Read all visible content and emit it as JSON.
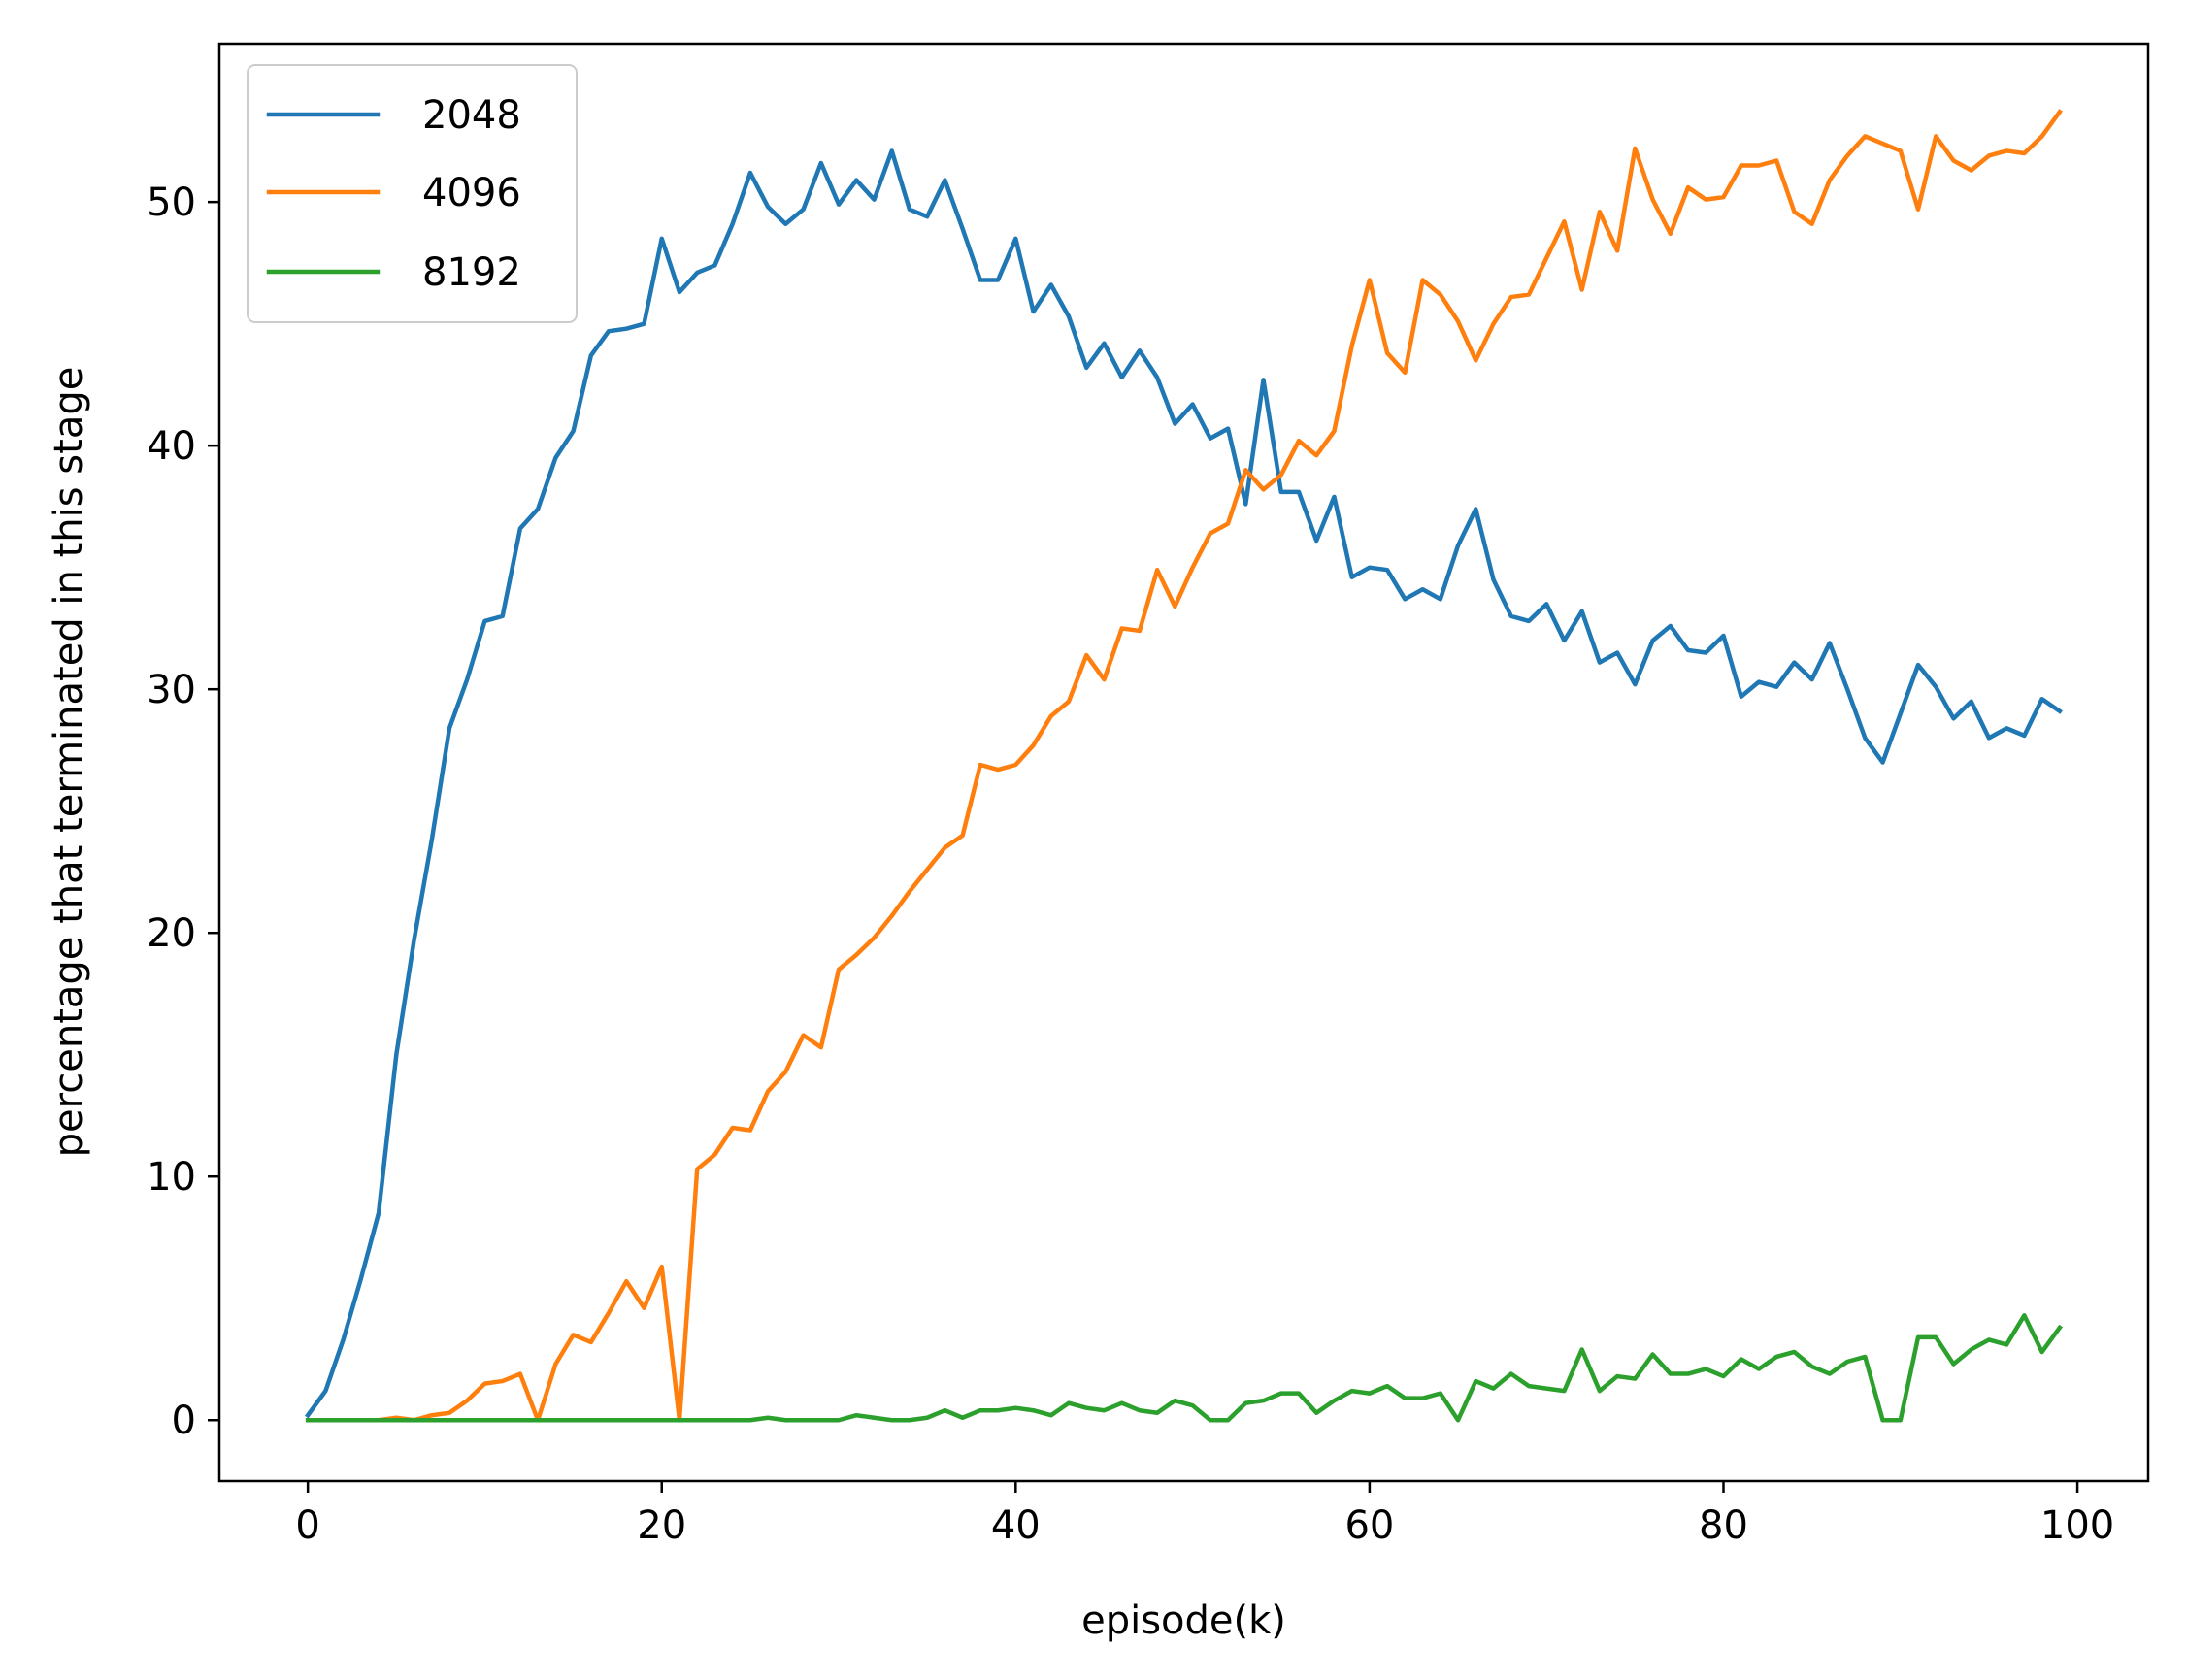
{
  "chart_data": {
    "type": "line",
    "xlabel": "episode(k)",
    "ylabel": "percentage that terminated in this stage",
    "xlim": [
      -5,
      104
    ],
    "ylim": [
      -2.5,
      56.5
    ],
    "xticks": [
      0,
      20,
      40,
      60,
      80,
      100
    ],
    "yticks": [
      0,
      10,
      20,
      30,
      40,
      50
    ],
    "grid": false,
    "legend_position": "top-left",
    "x": [
      0,
      1,
      2,
      3,
      4,
      5,
      6,
      7,
      8,
      9,
      10,
      11,
      12,
      13,
      14,
      15,
      16,
      17,
      18,
      19,
      20,
      21,
      22,
      23,
      24,
      25,
      26,
      27,
      28,
      29,
      30,
      31,
      32,
      33,
      34,
      35,
      36,
      37,
      38,
      39,
      40,
      41,
      42,
      43,
      44,
      45,
      46,
      47,
      48,
      49,
      50,
      51,
      52,
      53,
      54,
      55,
      56,
      57,
      58,
      59,
      60,
      61,
      62,
      63,
      64,
      65,
      66,
      67,
      68,
      69,
      70,
      71,
      72,
      73,
      74,
      75,
      76,
      77,
      78,
      79,
      80,
      81,
      82,
      83,
      84,
      85,
      86,
      87,
      88,
      89,
      90,
      91,
      92,
      93,
      94,
      95,
      96,
      97,
      98,
      99
    ],
    "series": [
      {
        "name": "2048",
        "color": "#1f77b4",
        "values": [
          0.2,
          1.2,
          3.3,
          5.8,
          8.5,
          15.0,
          19.7,
          23.8,
          28.4,
          30.4,
          32.8,
          33.0,
          36.6,
          37.4,
          39.5,
          40.6,
          43.7,
          44.7,
          44.8,
          45.0,
          48.5,
          46.3,
          47.1,
          47.4,
          49.1,
          51.2,
          49.8,
          49.1,
          49.7,
          51.6,
          49.9,
          50.9,
          50.1,
          52.1,
          49.7,
          49.4,
          50.9,
          48.9,
          46.8,
          46.8,
          48.5,
          45.5,
          46.6,
          45.3,
          43.2,
          44.2,
          42.8,
          43.9,
          42.8,
          40.9,
          41.7,
          40.3,
          40.7,
          37.6,
          42.7,
          38.1,
          38.1,
          36.1,
          37.9,
          34.6,
          35.0,
          34.9,
          33.7,
          34.1,
          33.7,
          35.9,
          37.4,
          34.5,
          33.0,
          32.8,
          33.5,
          32.0,
          33.2,
          31.1,
          31.5,
          30.2,
          32.0,
          32.6,
          31.6,
          31.5,
          32.2,
          29.7,
          30.3,
          30.1,
          31.1,
          30.4,
          31.9,
          30.0,
          28.0,
          27.0,
          29.0,
          31.0,
          30.1,
          28.8,
          29.5,
          28.0,
          28.4,
          28.1,
          29.6,
          29.1
        ]
      },
      {
        "name": "4096",
        "color": "#ff7f0e",
        "values": [
          0.0,
          0.0,
          0.0,
          0.0,
          0.0,
          0.1,
          0.0,
          0.2,
          0.3,
          0.8,
          1.5,
          1.6,
          1.9,
          0.0,
          2.3,
          3.5,
          3.2,
          4.4,
          5.7,
          4.6,
          6.3,
          0.0,
          10.3,
          10.9,
          12.0,
          11.9,
          13.5,
          14.3,
          15.8,
          15.3,
          18.5,
          19.1,
          19.8,
          20.7,
          21.7,
          22.6,
          23.5,
          24.0,
          26.9,
          26.7,
          26.9,
          27.7,
          28.9,
          29.5,
          31.4,
          30.4,
          32.5,
          32.4,
          34.9,
          33.4,
          35.0,
          36.4,
          36.8,
          39.0,
          38.2,
          38.8,
          40.2,
          39.6,
          40.6,
          44.1,
          46.8,
          43.8,
          43.0,
          46.8,
          46.2,
          45.1,
          43.5,
          45.0,
          46.1,
          46.2,
          47.7,
          49.2,
          46.4,
          49.6,
          48.0,
          52.2,
          50.1,
          48.7,
          50.6,
          50.1,
          50.2,
          51.5,
          51.5,
          51.7,
          49.6,
          49.1,
          50.9,
          51.9,
          52.7,
          52.4,
          52.1,
          49.7,
          52.7,
          51.7,
          51.3,
          51.9,
          52.1,
          52.0,
          52.7,
          53.7
        ]
      },
      {
        "name": "8192",
        "color": "#2ca02c",
        "values": [
          0.0,
          0.0,
          0.0,
          0.0,
          0.0,
          0.0,
          0.0,
          0.0,
          0.0,
          0.0,
          0.0,
          0.0,
          0.0,
          0.0,
          0.0,
          0.0,
          0.0,
          0.0,
          0.0,
          0.0,
          0.0,
          0.0,
          0.0,
          0.0,
          0.0,
          0.0,
          0.1,
          0.0,
          0.0,
          0.0,
          0.0,
          0.2,
          0.1,
          0.0,
          0.0,
          0.1,
          0.4,
          0.1,
          0.4,
          0.4,
          0.5,
          0.4,
          0.2,
          0.7,
          0.5,
          0.4,
          0.7,
          0.4,
          0.3,
          0.8,
          0.6,
          0.0,
          0.0,
          0.7,
          0.8,
          1.1,
          1.1,
          0.3,
          0.8,
          1.2,
          1.1,
          1.4,
          0.9,
          0.9,
          1.1,
          0.0,
          1.6,
          1.3,
          1.9,
          1.4,
          1.3,
          1.2,
          2.9,
          1.2,
          1.8,
          1.7,
          2.7,
          1.9,
          1.9,
          2.1,
          1.8,
          2.5,
          2.1,
          2.6,
          2.8,
          2.2,
          1.9,
          2.4,
          2.6,
          0.0,
          0.0,
          3.4,
          3.4,
          2.3,
          2.9,
          3.3,
          3.1,
          4.3,
          2.8,
          3.8
        ]
      }
    ]
  }
}
